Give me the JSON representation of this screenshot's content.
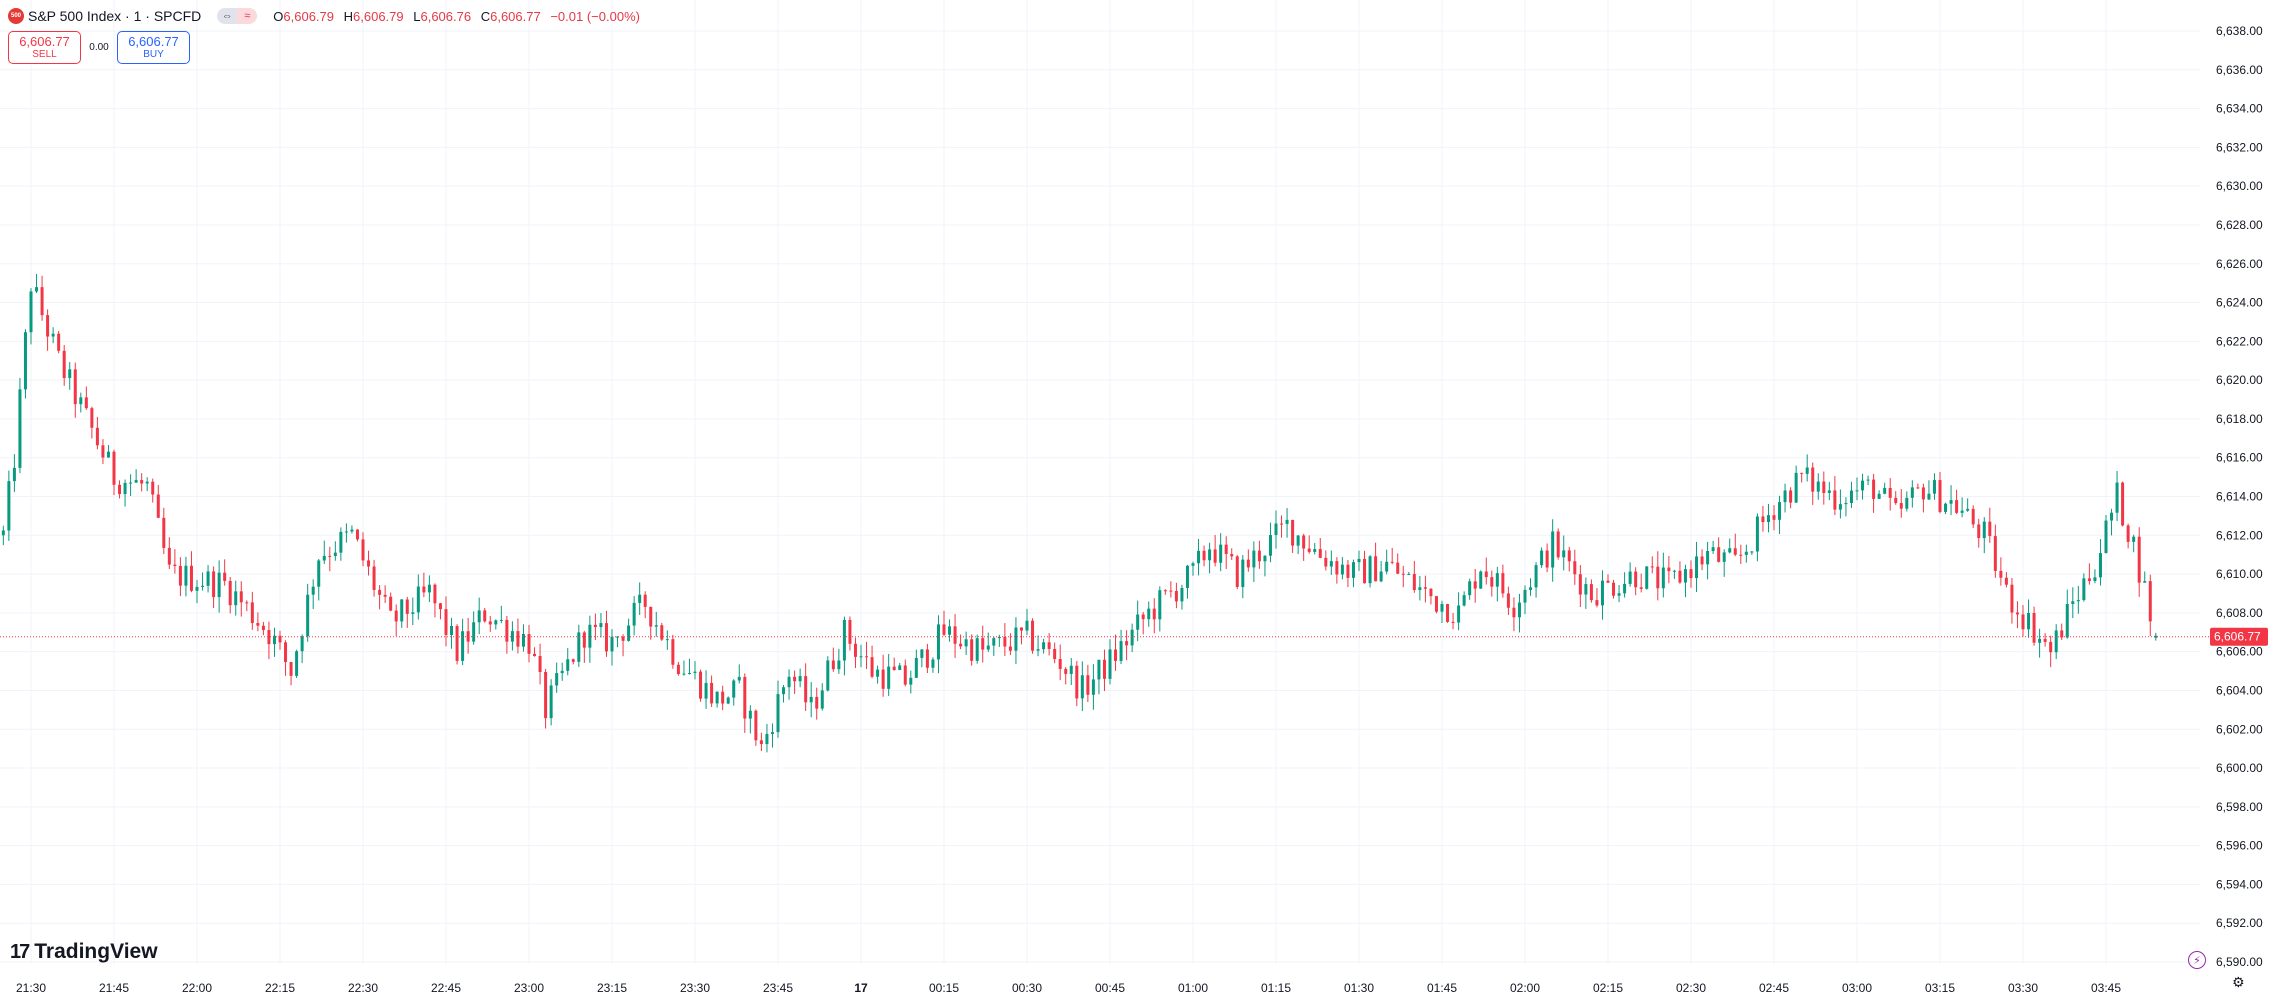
{
  "header": {
    "symbol_logo": "500",
    "symbol_title": "S&P 500 Index · 1 · SPCFD",
    "pill_left": "⇔",
    "pill_right": "≈",
    "ohlc": {
      "o_label": "O",
      "o_value": "6,606.79",
      "h_label": "H",
      "h_value": "6,606.79",
      "l_label": "L",
      "l_value": "6,606.76",
      "c_label": "C",
      "c_value": "6,606.77",
      "change": "−0.01 (−0.00%)"
    }
  },
  "trade": {
    "sell_price": "6,606.77",
    "sell_label": "SELL",
    "spread": "0.00",
    "buy_price": "6,606.77",
    "buy_label": "BUY"
  },
  "branding": {
    "name": "TradingView",
    "mark": "17"
  },
  "colors": {
    "up": "#089981",
    "down": "#f23645",
    "grid": "#f0f3fa",
    "axis_text": "#131722"
  },
  "chart_data": {
    "type": "candlestick",
    "title": "S&P 500 Index · 1 · SPCFD",
    "interval": "1 minute",
    "y_ticks": [
      "6,638.00",
      "6,636.00",
      "6,634.00",
      "6,632.00",
      "6,630.00",
      "6,628.00",
      "6,626.00",
      "6,624.00",
      "6,622.00",
      "6,620.00",
      "6,618.00",
      "6,616.00",
      "6,614.00",
      "6,612.00",
      "6,610.00",
      "6,608.00",
      "6,606.00",
      "6,604.00",
      "6,602.00",
      "6,600.00",
      "6,598.00",
      "6,596.00",
      "6,594.00",
      "6,592.00",
      "6,590.00"
    ],
    "y_tick_values": [
      6638,
      6636,
      6634,
      6632,
      6630,
      6628,
      6626,
      6624,
      6622,
      6620,
      6618,
      6616,
      6614,
      6612,
      6610,
      6608,
      6606,
      6604,
      6602,
      6600,
      6598,
      6596,
      6594,
      6592,
      6590
    ],
    "ylim": [
      6590,
      6638
    ],
    "x_ticks": [
      "21:30",
      "21:45",
      "22:00",
      "22:15",
      "22:30",
      "22:45",
      "23:00",
      "23:15",
      "23:30",
      "23:45",
      "17",
      "00:15",
      "00:30",
      "00:45",
      "01:00",
      "01:15",
      "01:30",
      "01:45",
      "02:00",
      "02:15",
      "02:30",
      "02:45",
      "03:00",
      "03:15",
      "03:30",
      "03:45"
    ],
    "last_price": 6606.77,
    "last_price_label": "6,606.77",
    "key_closes": [
      {
        "time": "21:25",
        "value": 6612.0
      },
      {
        "time": "21:27",
        "value": 6616.0
      },
      {
        "time": "21:30",
        "value": 6625.0
      },
      {
        "time": "21:35",
        "value": 6621.0
      },
      {
        "time": "21:40",
        "value": 6618.0
      },
      {
        "time": "21:45",
        "value": 6615.0
      },
      {
        "time": "21:51",
        "value": 6614.5
      },
      {
        "time": "21:55",
        "value": 6610.0
      },
      {
        "time": "22:05",
        "value": 6609.5
      },
      {
        "time": "22:13",
        "value": 6607.0
      },
      {
        "time": "22:17",
        "value": 6605.0
      },
      {
        "time": "22:22",
        "value": 6611.0
      },
      {
        "time": "22:28",
        "value": 6612.0
      },
      {
        "time": "22:35",
        "value": 6607.5
      },
      {
        "time": "22:42",
        "value": 6609.0
      },
      {
        "time": "22:47",
        "value": 6606.0
      },
      {
        "time": "22:52",
        "value": 6608.0
      },
      {
        "time": "23:00",
        "value": 6606.5
      },
      {
        "time": "23:03",
        "value": 6603.0
      },
      {
        "time": "23:10",
        "value": 6607.0
      },
      {
        "time": "23:15",
        "value": 6606.5
      },
      {
        "time": "23:21",
        "value": 6608.5
      },
      {
        "time": "23:27",
        "value": 6605.5
      },
      {
        "time": "23:34",
        "value": 6603.5
      },
      {
        "time": "23:38",
        "value": 6604.0
      },
      {
        "time": "23:42",
        "value": 6601.0
      },
      {
        "time": "23:47",
        "value": 6605.0
      },
      {
        "time": "23:51",
        "value": 6603.0
      },
      {
        "time": "23:57",
        "value": 6607.0
      },
      {
        "time": "00:02",
        "value": 6605.0
      },
      {
        "time": "00:08",
        "value": 6604.5
      },
      {
        "time": "00:15",
        "value": 6607.0
      },
      {
        "time": "00:22",
        "value": 6606.0
      },
      {
        "time": "00:30",
        "value": 6606.8
      },
      {
        "time": "00:36",
        "value": 6605.5
      },
      {
        "time": "00:40",
        "value": 6604.0
      },
      {
        "time": "00:45",
        "value": 6605.5
      },
      {
        "time": "00:52",
        "value": 6608.0
      },
      {
        "time": "01:00",
        "value": 6610.0
      },
      {
        "time": "01:03",
        "value": 6611.5
      },
      {
        "time": "01:08",
        "value": 6610.0
      },
      {
        "time": "01:17",
        "value": 6612.5
      },
      {
        "time": "01:23",
        "value": 6611.0
      },
      {
        "time": "01:29",
        "value": 6610.0
      },
      {
        "time": "01:35",
        "value": 6610.5
      },
      {
        "time": "01:42",
        "value": 6609.0
      },
      {
        "time": "01:48",
        "value": 6608.0
      },
      {
        "time": "01:52",
        "value": 6610.5
      },
      {
        "time": "01:58",
        "value": 6608.5
      },
      {
        "time": "02:05",
        "value": 6611.5
      },
      {
        "time": "02:12",
        "value": 6609.0
      },
      {
        "time": "02:20",
        "value": 6610.0
      },
      {
        "time": "02:26",
        "value": 6609.5
      },
      {
        "time": "02:33",
        "value": 6611.0
      },
      {
        "time": "02:38",
        "value": 6610.5
      },
      {
        "time": "02:45",
        "value": 6613.5
      },
      {
        "time": "02:50",
        "value": 6615.0
      },
      {
        "time": "02:56",
        "value": 6614.0
      },
      {
        "time": "03:03",
        "value": 6614.5
      },
      {
        "time": "03:07",
        "value": 6613.0
      },
      {
        "time": "03:12",
        "value": 6614.5
      },
      {
        "time": "03:18",
        "value": 6613.5
      },
      {
        "time": "03:23",
        "value": 6612.0
      },
      {
        "time": "03:27",
        "value": 6609.0
      },
      {
        "time": "03:31",
        "value": 6607.5
      },
      {
        "time": "03:35",
        "value": 6606.0
      },
      {
        "time": "03:39",
        "value": 6608.5
      },
      {
        "time": "03:43",
        "value": 6610.5
      },
      {
        "time": "03:47",
        "value": 6614.0
      },
      {
        "time": "03:50",
        "value": 6611.5
      },
      {
        "time": "03:54",
        "value": 6606.8
      }
    ]
  }
}
